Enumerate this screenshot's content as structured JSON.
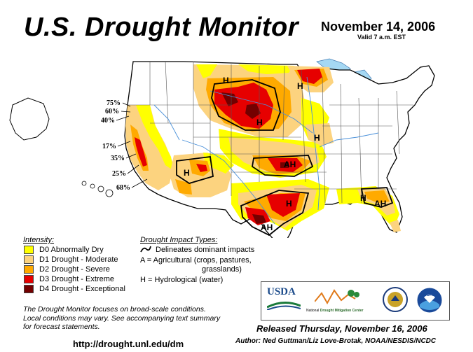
{
  "title": "U.S. Drought Monitor",
  "date": "November 14, 2006",
  "valid": "Valid 7 a.m. EST",
  "colors": {
    "d0": "#ffff00",
    "d1": "#fcd37f",
    "d2": "#ffaa00",
    "d3": "#e60000",
    "d4": "#730000",
    "water": "#a5d8f3",
    "river": "#4a90d9"
  },
  "legend": {
    "heading": "Intensity:",
    "items": [
      {
        "label": "D0 Abnormally Dry"
      },
      {
        "label": "D1 Drought - Moderate"
      },
      {
        "label": "D2 Drought - Severe"
      },
      {
        "label": "D3 Drought - Extreme"
      },
      {
        "label": "D4 Drought - Exceptional"
      }
    ]
  },
  "impacts": {
    "heading": "Drought Impact Types:",
    "delineates": "Delineates dominant impacts",
    "ag_line1": "A = Agricultural (crops, pastures,",
    "ag_line2": "grasslands)",
    "hydro": "H = Hydrological (water)"
  },
  "map_labels": {
    "h": "H",
    "ah": "AH",
    "pct_75": "75%",
    "pct_60": "60%",
    "pct_40": "40%",
    "pct_17": "17%",
    "pct_35": "35%",
    "pct_25": "25%",
    "pct_68": "68%"
  },
  "note_lines": [
    "The Drought Monitor focuses on broad-scale conditions.",
    "Local conditions may vary. See accompanying text summary",
    "for forecast statements."
  ],
  "url": "http://drought.unl.edu/dm",
  "released": "Released Thursday, November 16, 2006",
  "author": "Author: Ned Guttman/Liz Love-Brotak, NOAA/NESDIS/NCDC",
  "logos": {
    "usda": "USDA",
    "ndmc_prefix": "National",
    "ndmc": "Drought Mitigation Center",
    "noaa": "NOAA"
  }
}
